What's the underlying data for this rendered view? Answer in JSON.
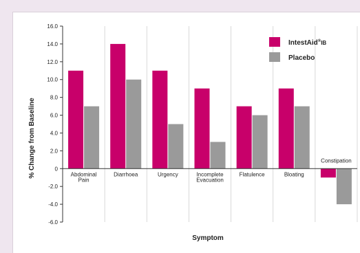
{
  "chart_data": {
    "type": "bar",
    "ylabel": "% Change from Baseline",
    "xlabel": "Symptom",
    "ylim": [
      -6,
      16
    ],
    "yticks": [
      "16.0",
      "14.0",
      "12.0",
      "10.0",
      "8.0",
      "6.0",
      "4.0",
      "2.0",
      "0",
      "-2.0",
      "-4.0",
      "-6.0"
    ],
    "categories": [
      [
        "Abdominal",
        "Pain"
      ],
      [
        "Diarrhoea"
      ],
      [
        "Urgency"
      ],
      [
        "Incomplete",
        "Evacuation"
      ],
      [
        "Flatulence"
      ],
      [
        "Bloating"
      ],
      [
        "Constipation"
      ]
    ],
    "series": [
      {
        "name": "IntestAid",
        "name_sup": "®",
        "name_sub": "IB",
        "color": "#c8006a",
        "values": [
          11,
          14,
          11,
          9,
          7,
          9,
          -1
        ]
      },
      {
        "name": "Placebo",
        "color": "#9a9a9a",
        "values": [
          7,
          10,
          5,
          3,
          6,
          7,
          -4
        ]
      }
    ],
    "grid": "vertical category separators only",
    "legend": "top-right"
  }
}
